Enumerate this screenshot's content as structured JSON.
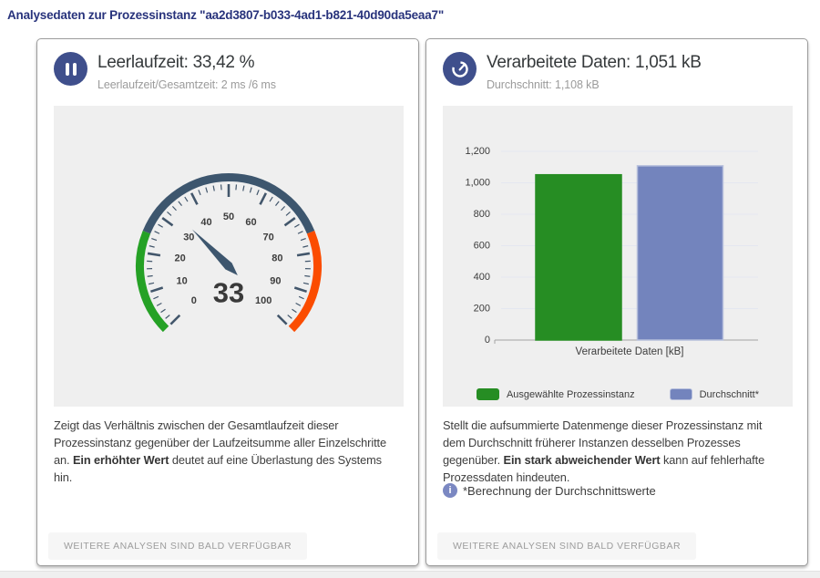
{
  "page": {
    "title": "Analysedaten zur Prozessinstanz \"aa2d3807-b033-4ad1-b821-40d90da5eaa7\""
  },
  "colors": {
    "page_title": "#28337c",
    "header_icon_circle": "#3f4f8c",
    "info_icon": "#7b88c2"
  },
  "cards": {
    "idle": {
      "icon": "pause-icon",
      "title": "Leerlaufzeit: 33,42 %",
      "subtitle": "Leerlaufzeit/Gesamtzeit: 2 ms /6 ms",
      "description": [
        {
          "text": "Zeigt das Verhältnis zwischen der Gesamtlaufzeit dieser Prozessinstanz gegenüber der Laufzeitsumme aller Einzelschritte an. ",
          "bold": false
        },
        {
          "text": "Ein erhöhter Wert",
          "bold": true
        },
        {
          "text": " deutet auf eine Überlastung des Systems hin.",
          "bold": false
        }
      ],
      "footer_button": "WEITERE ANALYSEN SIND BALD VERFÜGBAR"
    },
    "data": {
      "icon": "speedometer-icon",
      "title": "Verarbeitete Daten: 1,051 kB",
      "subtitle": "Durchschnitt: 1,108 kB",
      "description": [
        {
          "text": "Stellt die aufsummierte Datenmenge dieser Prozessinstanz mit dem Durchschnitt früherer Instanzen desselben Prozesses gegenüber. ",
          "bold": false
        },
        {
          "text": "Ein stark abweichender Wert",
          "bold": true
        },
        {
          "text": " kann auf fehlerhafte Prozessdaten hindeuten.",
          "bold": false
        }
      ],
      "info_icon": "info-icon",
      "info_note": "*Berechnung der Durchschnittswerte",
      "footer_button": "WEITERE ANALYSEN SIND BALD VERFÜGBAR"
    }
  },
  "chart_data": [
    {
      "type": "gauge",
      "title": "Leerlaufzeit (%)",
      "value": 33.42,
      "value_label": "33",
      "min": 0,
      "max": 100,
      "start_angle": 225,
      "end_angle": -45,
      "tick_interval": 10,
      "minor_tick": 2,
      "tick_labels": [
        "0",
        "10",
        "20",
        "30",
        "40",
        "50",
        "60",
        "70",
        "80",
        "90",
        "100"
      ],
      "bands": [
        {
          "from": 0,
          "to": 25,
          "color": "#25a125"
        },
        {
          "from": 25,
          "to": 75,
          "color": "#3d566e"
        },
        {
          "from": 75,
          "to": 100,
          "color": "#fb4c00"
        }
      ],
      "needle_color": "#3d566e",
      "tick_color": "#42566b",
      "label_color": "#3d3d3d",
      "value_color": "#3a3a3a"
    },
    {
      "type": "bar",
      "categories": [
        "Verarbeitete Daten [kB]"
      ],
      "series": [
        {
          "name": "Ausgewählte Prozessinstanz",
          "values": [
            1051
          ],
          "color": "#268d23",
          "border": "#268d23"
        },
        {
          "name": "Durchschnitt*",
          "values": [
            1108
          ],
          "color": "#7384bd",
          "border": "#b6bfdc"
        }
      ],
      "xlabel": "Verarbeitete Daten [kB]",
      "ylim": [
        0,
        1200
      ],
      "ytick_interval": 200,
      "ytick_labels": [
        "0",
        "200",
        "400",
        "600",
        "800",
        "1,000",
        "1,200"
      ],
      "grid": true,
      "legend_position": "bottom",
      "grid_color": "#e4e7f0",
      "axis_color": "#a3a3a3",
      "tick_label_color": "#3c3c3c"
    }
  ]
}
